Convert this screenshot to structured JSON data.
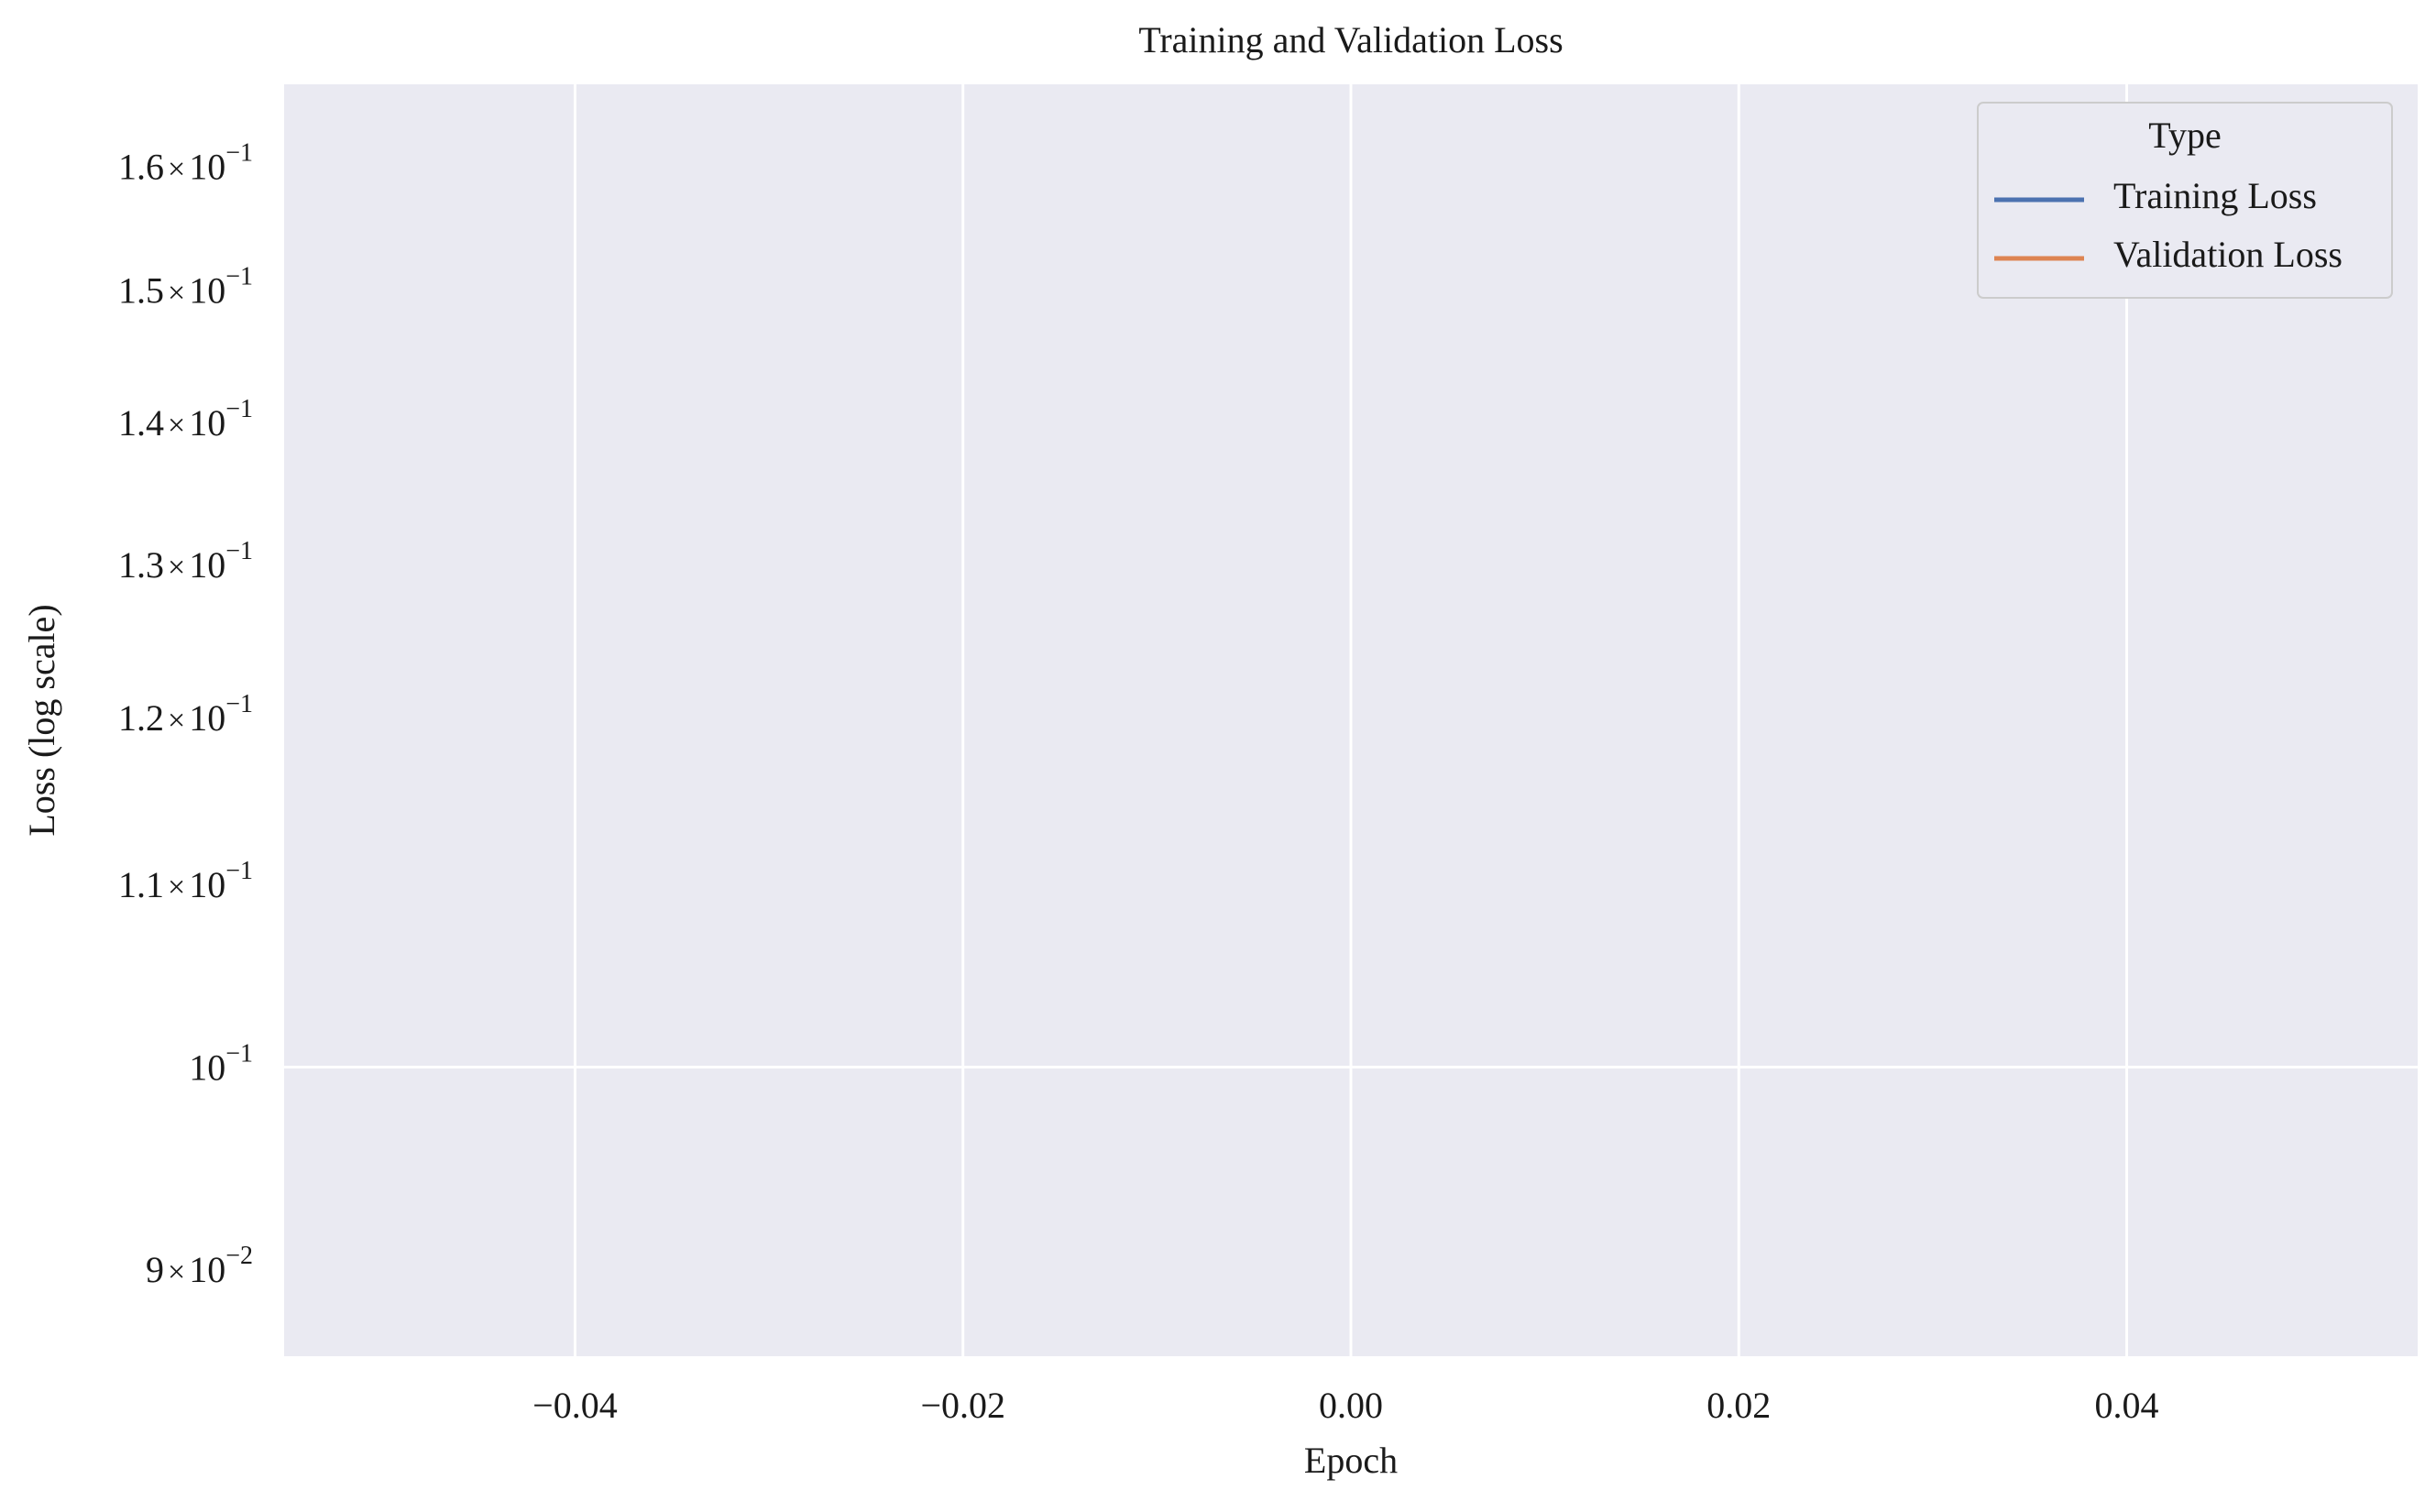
{
  "chart_data": {
    "type": "line",
    "title": "Training and Validation Loss",
    "xlabel": "Epoch",
    "ylabel": "Loss (log scale)",
    "xlim": [
      -0.055,
      0.055
    ],
    "ylim": [
      0.086,
      0.167
    ],
    "yscale": "log",
    "grid": true,
    "x_ticks": [
      {
        "value": -0.04,
        "label": "−0.04"
      },
      {
        "value": -0.02,
        "label": "−0.02"
      },
      {
        "value": 0.0,
        "label": "0.00"
      },
      {
        "value": 0.02,
        "label": "0.02"
      },
      {
        "value": 0.04,
        "label": "0.04"
      }
    ],
    "y_ticks_major": [
      {
        "value": 0.1,
        "mantissa": "",
        "base": "10",
        "exp": "−1"
      }
    ],
    "y_ticks_minor": [
      {
        "value": 0.09,
        "mantissa": "9",
        "base": "10",
        "exp": "−2"
      },
      {
        "value": 0.11,
        "mantissa": "1.1",
        "base": "10",
        "exp": "−1"
      },
      {
        "value": 0.12,
        "mantissa": "1.2",
        "base": "10",
        "exp": "−1"
      },
      {
        "value": 0.13,
        "mantissa": "1.3",
        "base": "10",
        "exp": "−1"
      },
      {
        "value": 0.14,
        "mantissa": "1.4",
        "base": "10",
        "exp": "−1"
      },
      {
        "value": 0.15,
        "mantissa": "1.5",
        "base": "10",
        "exp": "−1"
      },
      {
        "value": 0.16,
        "mantissa": "1.6",
        "base": "10",
        "exp": "−1"
      }
    ],
    "legend": {
      "title": "Type",
      "placement": "top-right",
      "entries": [
        {
          "label": "Training Loss",
          "color": "#4c72b0"
        },
        {
          "label": "Validation Loss",
          "color": "#dd8452"
        }
      ]
    },
    "series": [
      {
        "name": "Training Loss",
        "color": "#4c72b0",
        "x": [],
        "y": []
      },
      {
        "name": "Validation Loss",
        "color": "#dd8452",
        "x": [],
        "y": []
      }
    ],
    "colors": {
      "plot_background": "#eaeaf2",
      "grid": "#ffffff"
    }
  }
}
